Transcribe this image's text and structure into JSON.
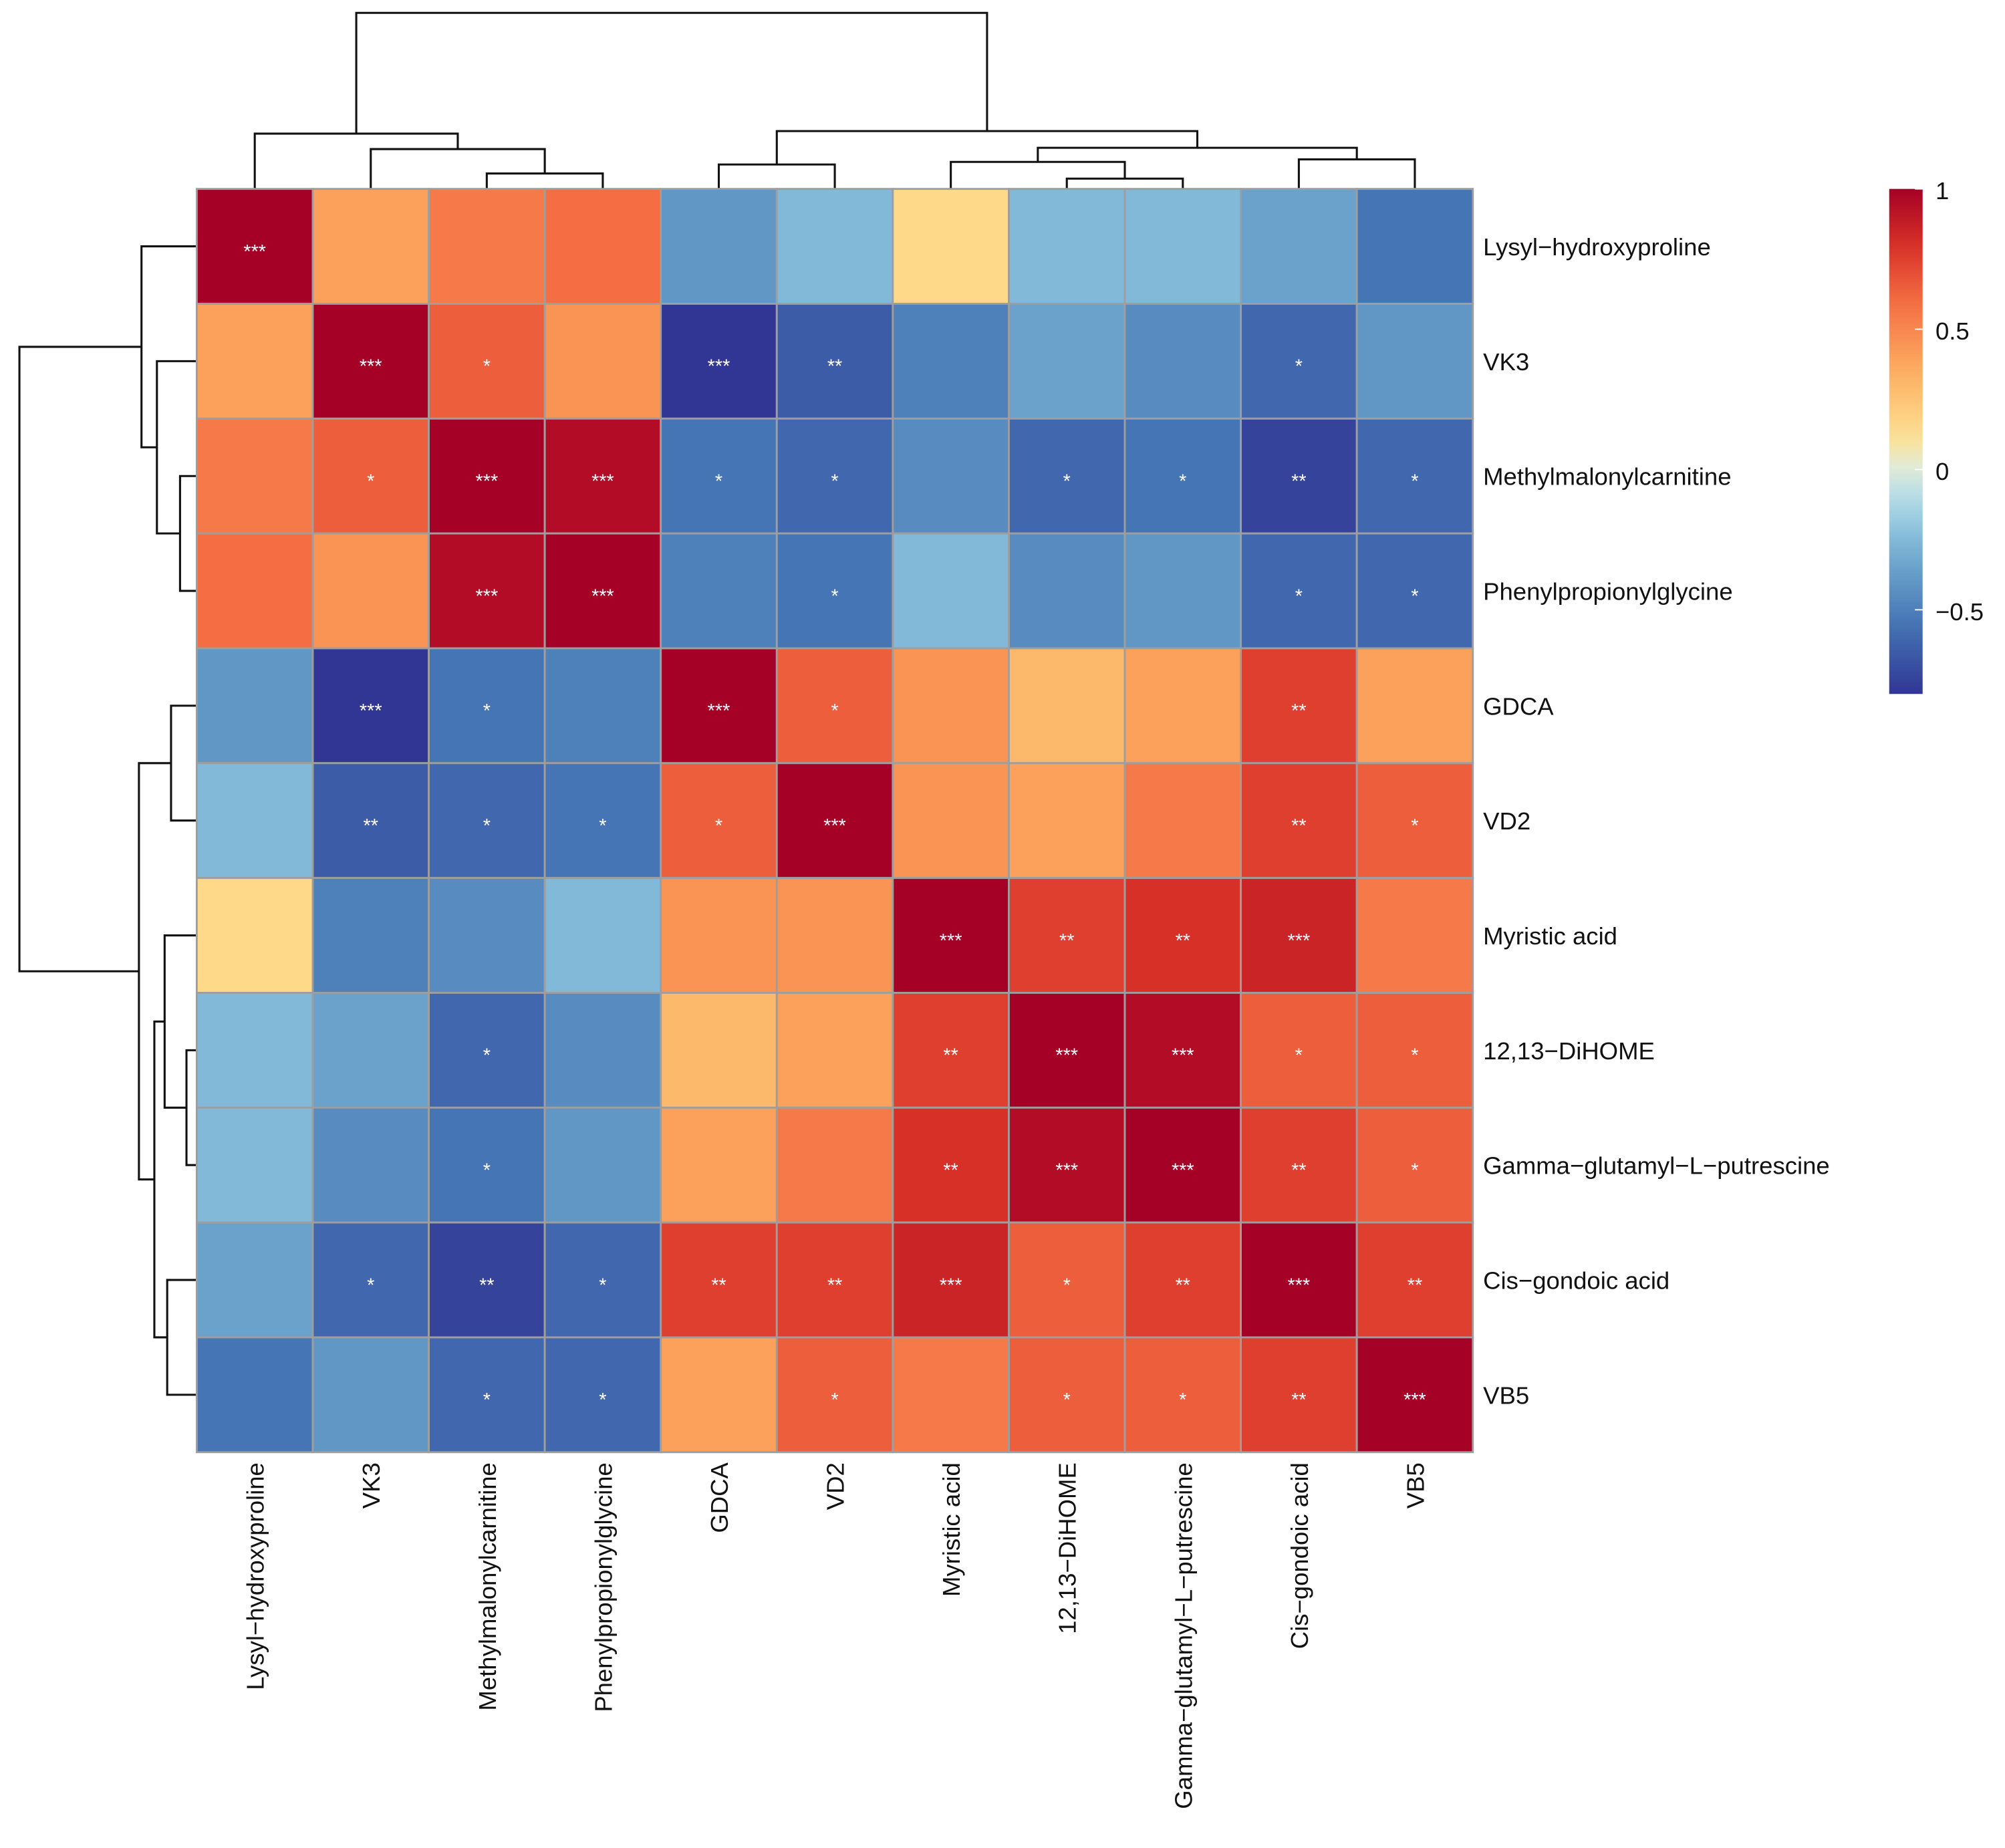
{
  "chart_data": {
    "type": "heatmap",
    "title": "",
    "rows": [
      "Lysyl-hydroxyproline",
      "VK3",
      "Methylmalonylcarnitine",
      "Phenylpropionylglycine",
      "GDCA",
      "VD2",
      "Myristic acid",
      "12,13-DiHOME",
      "Gamma-glutamyl-L-putrescine",
      "Cis-gondoic acid",
      "VB5"
    ],
    "columns": [
      "Lysyl-hydroxyproline",
      "VK3",
      "Methylmalonylcarnitine",
      "Phenylpropionylglycine",
      "GDCA",
      "VD2",
      "Myristic acid",
      "12,13-DiHOME",
      "Gamma-glutamyl-L-putrescine",
      "Cis-gondoic acid",
      "VB5"
    ],
    "values": [
      [
        1,
        0.4,
        0.55,
        0.6,
        -0.4,
        -0.25,
        0.15,
        -0.25,
        -0.25,
        -0.35,
        -0.55
      ],
      [
        0.4,
        1,
        0.65,
        0.45,
        -0.8,
        -0.65,
        -0.5,
        -0.35,
        -0.45,
        -0.6,
        -0.4
      ],
      [
        0.55,
        0.65,
        1,
        0.95,
        -0.55,
        -0.6,
        -0.45,
        -0.6,
        -0.55,
        -0.75,
        -0.6
      ],
      [
        0.6,
        0.45,
        0.95,
        1,
        -0.5,
        -0.55,
        -0.25,
        -0.45,
        -0.4,
        -0.6,
        -0.6
      ],
      [
        -0.4,
        -0.8,
        -0.55,
        -0.5,
        1,
        0.65,
        0.45,
        0.3,
        0.4,
        0.75,
        0.4
      ],
      [
        -0.25,
        -0.65,
        -0.6,
        -0.55,
        0.65,
        1,
        0.45,
        0.4,
        0.55,
        0.75,
        0.65
      ],
      [
        0.15,
        -0.5,
        -0.45,
        -0.25,
        0.45,
        0.45,
        1,
        0.75,
        0.8,
        0.85,
        0.55
      ],
      [
        -0.25,
        -0.35,
        -0.6,
        -0.45,
        0.3,
        0.4,
        0.75,
        1,
        0.95,
        0.65,
        0.65
      ],
      [
        -0.25,
        -0.45,
        -0.55,
        -0.4,
        0.4,
        0.55,
        0.8,
        0.95,
        1,
        0.75,
        0.65
      ],
      [
        -0.35,
        -0.6,
        -0.75,
        -0.6,
        0.75,
        0.75,
        0.85,
        0.65,
        0.75,
        1,
        0.75
      ],
      [
        -0.55,
        -0.4,
        -0.6,
        -0.6,
        0.4,
        0.65,
        0.55,
        0.65,
        0.65,
        0.75,
        1
      ]
    ],
    "significance": [
      [
        "***",
        "",
        "",
        "",
        "",
        "",
        "",
        "",
        "",
        "",
        ""
      ],
      [
        "",
        "***",
        "*",
        "",
        "***",
        "**",
        "",
        "",
        "",
        "*",
        ""
      ],
      [
        "",
        "*",
        "***",
        "***",
        "*",
        "*",
        "",
        "*",
        "*",
        "**",
        "*"
      ],
      [
        "",
        "",
        "***",
        "***",
        "",
        "*",
        "",
        "",
        "",
        "*",
        "*"
      ],
      [
        "",
        "***",
        "*",
        "",
        "***",
        "*",
        "",
        "",
        "",
        "**",
        ""
      ],
      [
        "",
        "**",
        "*",
        "*",
        "*",
        "***",
        "",
        "",
        "",
        "**",
        "*"
      ],
      [
        "",
        "",
        "",
        "",
        "",
        "",
        "***",
        "**",
        "**",
        "***",
        ""
      ],
      [
        "",
        "",
        "*",
        "",
        "",
        "",
        "**",
        "***",
        "***",
        "*",
        "*"
      ],
      [
        "",
        "",
        "*",
        "",
        "",
        "",
        "**",
        "***",
        "***",
        "**",
        "*"
      ],
      [
        "",
        "*",
        "**",
        "*",
        "**",
        "**",
        "***",
        "*",
        "**",
        "***",
        "**"
      ],
      [
        "",
        "",
        "*",
        "*",
        "",
        "*",
        "",
        "*",
        "*",
        "**",
        "***"
      ]
    ],
    "colorbar": {
      "range": [
        -0.8,
        1
      ],
      "ticks": [
        1,
        0.5,
        0,
        -0.5
      ],
      "tick_labels": [
        "1",
        "0.5",
        "0",
        "−0.5"
      ]
    },
    "colors": {
      "low": "#313695",
      "mid": "#ffffbf",
      "high": "#a50026",
      "cell_border": "#9e9e9e"
    },
    "dendrograms": {
      "rows": true,
      "columns": true
    }
  }
}
